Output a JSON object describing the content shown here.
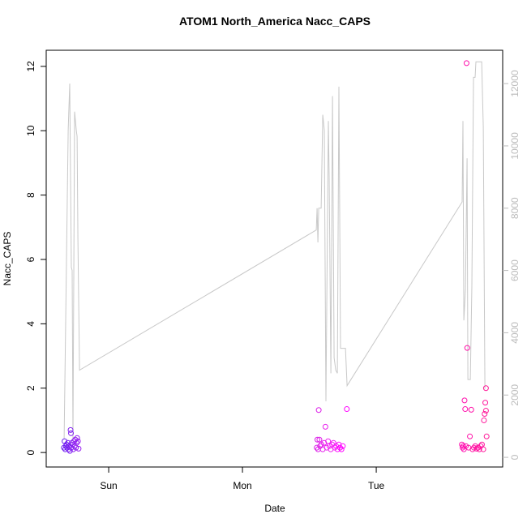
{
  "chart_data": {
    "type": "scatter",
    "title": "ATOM1 North_America Nacc_CAPS",
    "xlabel": "Date",
    "ylabel": "Nacc_CAPS",
    "xlim": [
      -0.467,
      2.945
    ],
    "xticks": [
      {
        "value": 0,
        "label": "Sun"
      },
      {
        "value": 1,
        "label": "Mon"
      },
      {
        "value": 2,
        "label": "Tue"
      }
    ],
    "ylim": [
      -0.45,
      12.5
    ],
    "yticks": [
      0,
      2,
      4,
      6,
      8,
      10,
      12
    ],
    "y2lim": [
      -310,
      13070
    ],
    "y2ticks": [
      0,
      2000,
      4000,
      6000,
      8000,
      10000,
      12000
    ],
    "y2color": "#bbbbbb",
    "x": [
      -0.335,
      -0.33,
      -0.325,
      -0.32,
      -0.315,
      -0.31,
      -0.305,
      -0.3,
      -0.295,
      -0.29,
      -0.285,
      -0.282,
      -0.28,
      -0.275,
      -0.27,
      -0.265,
      -0.26,
      -0.255,
      -0.25,
      -0.245,
      -0.24,
      -0.236,
      -0.23,
      -0.225,
      1.555,
      1.56,
      1.565,
      1.57,
      1.575,
      1.58,
      1.59,
      1.6,
      1.61,
      1.62,
      1.63,
      1.64,
      1.65,
      1.66,
      1.67,
      1.68,
      1.69,
      1.7,
      1.71,
      1.72,
      1.73,
      1.74,
      1.75,
      1.78,
      2.64,
      2.645,
      2.65,
      2.655,
      2.66,
      2.665,
      2.67,
      2.675,
      2.68,
      2.69,
      2.7,
      2.71,
      2.72,
      2.73,
      2.74,
      2.75,
      2.76,
      2.77,
      2.78,
      2.79,
      2.8,
      2.805,
      2.81,
      2.815,
      2.82,
      2.82,
      2.825
    ],
    "values": [
      0.15,
      0.35,
      0.1,
      0.2,
      0.25,
      0.15,
      0.3,
      0.1,
      0.2,
      0.05,
      0.7,
      0.6,
      0.15,
      0.3,
      0.25,
      0.1,
      0.35,
      0.2,
      0.4,
      0.15,
      0.3,
      0.45,
      0.35,
      0.12,
      0.15,
      0.4,
      0.1,
      1.32,
      0.4,
      0.2,
      0.25,
      0.1,
      0.3,
      0.8,
      0.15,
      0.35,
      0.2,
      0.1,
      0.25,
      0.3,
      0.15,
      0.2,
      0.1,
      0.25,
      0.15,
      0.1,
      0.2,
      1.35,
      0.25,
      0.15,
      0.2,
      0.1,
      1.62,
      1.35,
      0.2,
      12.1,
      3.25,
      0.15,
      0.5,
      1.33,
      0.1,
      0.15,
      0.2,
      0.12,
      0.15,
      0.1,
      0.2,
      0.25,
      0.1,
      1.0,
      1.2,
      1.55,
      2.0,
      1.3,
      0.5
    ],
    "colors": [
      "#6a1ef0",
      "#6a1ef0",
      "#6f1ff0",
      "#6f1ff0",
      "#731ff0",
      "#731ff0",
      "#7820f0",
      "#7820f0",
      "#7c20f0",
      "#7c20f0",
      "#8020f0",
      "#8020f0",
      "#8420f0",
      "#8420f0",
      "#8820f0",
      "#8820f0",
      "#8c20f0",
      "#8c20f0",
      "#9020f0",
      "#9020f0",
      "#9420f0",
      "#9420f0",
      "#9820f0",
      "#9820f0",
      "#d81fe8",
      "#d81fe8",
      "#dc1fe8",
      "#dc1fe8",
      "#e01fe8",
      "#e01fe8",
      "#e41feb",
      "#e41feb",
      "#e81fee",
      "#e81fee",
      "#ec1ff0",
      "#ec1ff0",
      "#f01ff2",
      "#f01ff2",
      "#f41ff5",
      "#f41ff5",
      "#f81ff8",
      "#f81ff8",
      "#fc10fc",
      "#fc10fc",
      "#ff00ff",
      "#ff00ff",
      "#ff00ff",
      "#ff00ff",
      "#ff10b0",
      "#ff10b0",
      "#ff10b0",
      "#ff10b0",
      "#ff10ac",
      "#ff10ac",
      "#ff10ac",
      "#ff10ac",
      "#ff12a8",
      "#ff12a8",
      "#ff12a8",
      "#ff12a8",
      "#ff14a4",
      "#ff14a4",
      "#ff14a4",
      "#ff14a4",
      "#ff16a0",
      "#ff16a0",
      "#ff16a0",
      "#ff16a0",
      "#ff189c",
      "#ff189c",
      "#ff189c",
      "#ff189c",
      "#ff1a98",
      "#ff1a98",
      "#ff1a98"
    ],
    "line": {
      "color": "#c8c8c8",
      "axis": "y2",
      "x": [
        -0.333,
        -0.303,
        -0.291,
        -0.279,
        -0.273,
        -0.267,
        -0.255,
        -0.242,
        -0.236,
        -0.23,
        -0.218,
        1.552,
        1.558,
        1.564,
        1.57,
        1.588,
        1.6,
        1.612,
        1.624,
        1.642,
        1.648,
        1.661,
        1.673,
        1.685,
        1.697,
        1.709,
        1.721,
        1.733,
        1.745,
        1.77,
        1.782,
        2.642,
        2.648,
        2.655,
        2.667,
        2.679,
        2.685,
        2.703,
        2.715,
        2.727,
        2.739,
        2.745,
        2.788,
        2.8,
        2.812
      ],
      "values": [
        600,
        10500,
        12000,
        6100,
        6000,
        600,
        11100,
        10500,
        10300,
        7000,
        2800,
        7300,
        8000,
        6900,
        8000,
        8000,
        11000,
        10500,
        1800,
        10800,
        9000,
        2700,
        11600,
        3200,
        2800,
        2700,
        11900,
        3500,
        3500,
        3500,
        2300,
        8200,
        10800,
        4400,
        5400,
        9600,
        2500,
        2500,
        5500,
        12200,
        12200,
        12700,
        12700,
        10600,
        2200
      ]
    }
  }
}
